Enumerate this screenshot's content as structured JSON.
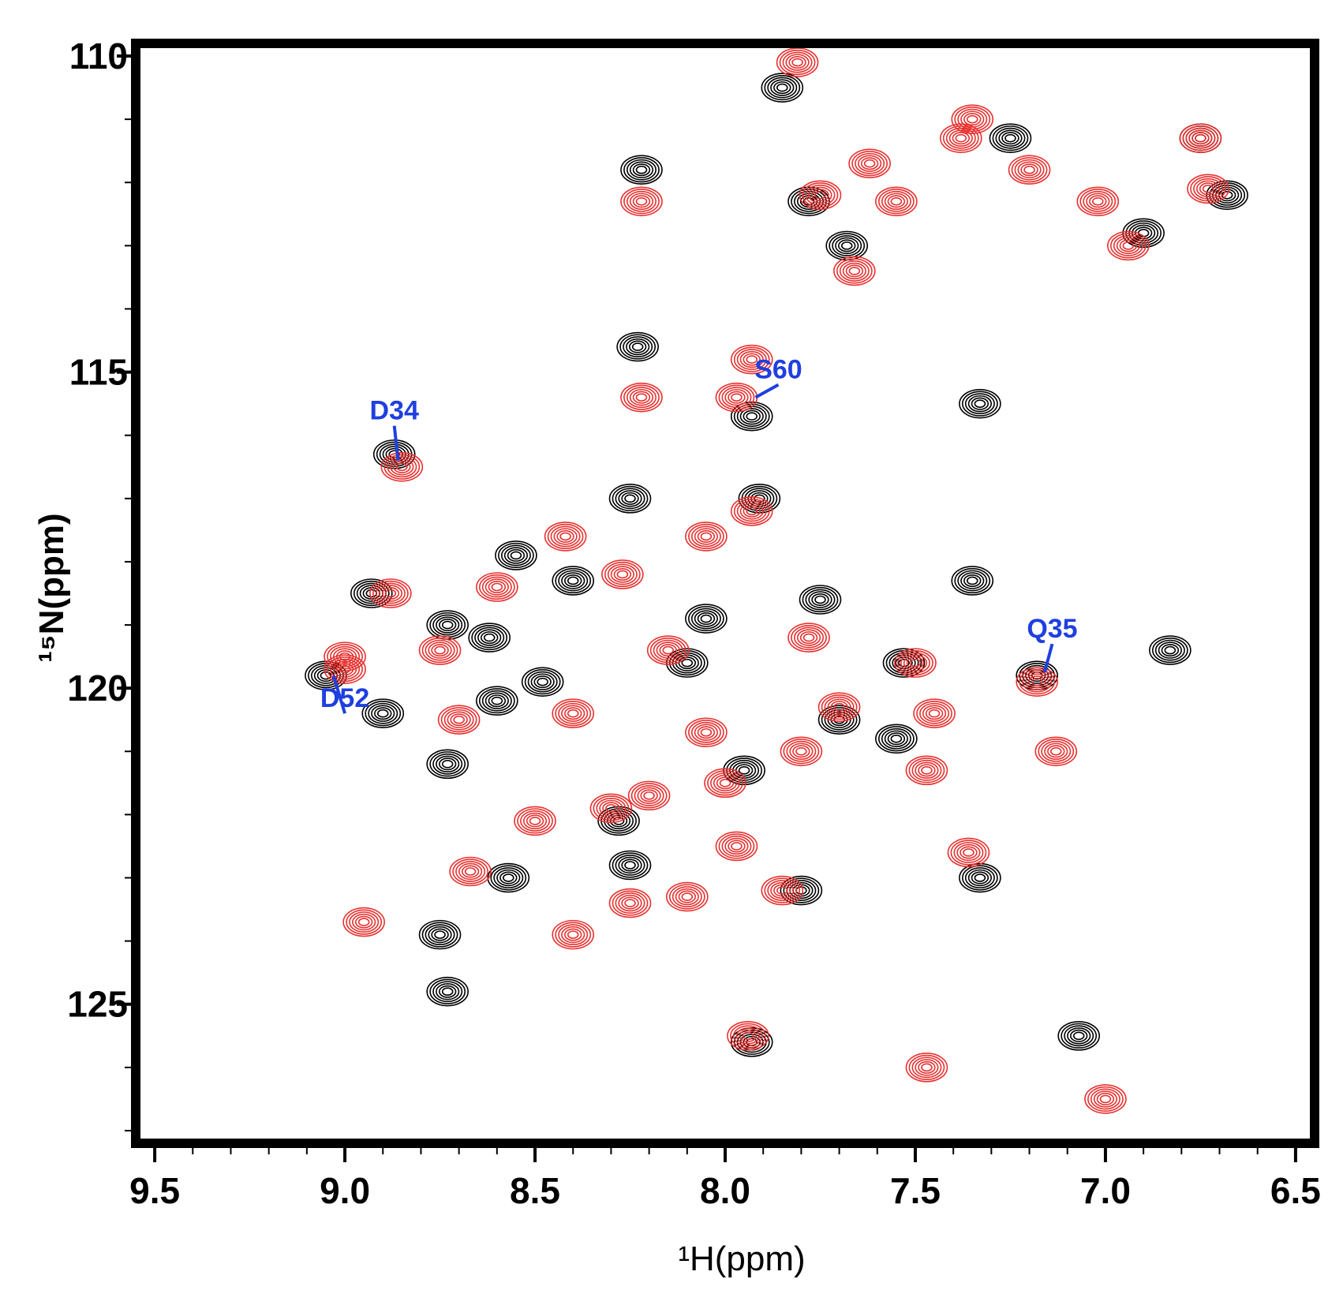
{
  "chart_data": {
    "type": "scatter",
    "title": "",
    "xlabel": "¹H(ppm)",
    "ylabel": "¹⁵N(ppm)",
    "xlim": [
      9.55,
      6.45
    ],
    "ylim": [
      127.2,
      109.8
    ],
    "x_ticks": [
      "9.5",
      "9.0",
      "8.5",
      "8.0",
      "7.5",
      "7.0",
      "6.5"
    ],
    "y_ticks": [
      "110",
      "115",
      "120",
      "125"
    ],
    "grid": false,
    "colors": {
      "black_spectrum": "#000000",
      "red_spectrum": "#e8312f",
      "annotation": "#1f3fe0"
    },
    "series": [
      {
        "color": "#000000",
        "points": [
          [
            7.85,
            110.5
          ],
          [
            8.22,
            111.8
          ],
          [
            7.78,
            112.3
          ],
          [
            7.68,
            113.0
          ],
          [
            7.25,
            111.3
          ],
          [
            6.75,
            111.3
          ],
          [
            6.68,
            112.2
          ],
          [
            6.9,
            112.8
          ],
          [
            8.23,
            114.6
          ],
          [
            7.93,
            115.7
          ],
          [
            7.33,
            115.5
          ],
          [
            8.87,
            116.3
          ],
          [
            7.91,
            117.0
          ],
          [
            8.25,
            117.0
          ],
          [
            8.55,
            117.9
          ],
          [
            8.93,
            118.5
          ],
          [
            8.73,
            119.0
          ],
          [
            8.62,
            119.2
          ],
          [
            8.4,
            118.3
          ],
          [
            7.35,
            118.3
          ],
          [
            7.75,
            118.6
          ],
          [
            6.83,
            119.4
          ],
          [
            9.05,
            119.8
          ],
          [
            8.9,
            120.4
          ],
          [
            7.53,
            119.6
          ],
          [
            7.18,
            119.8
          ],
          [
            8.48,
            119.9
          ],
          [
            8.1,
            119.6
          ],
          [
            8.6,
            120.2
          ],
          [
            8.73,
            121.2
          ],
          [
            8.28,
            122.1
          ],
          [
            7.95,
            121.3
          ],
          [
            8.25,
            122.8
          ],
          [
            8.57,
            123.0
          ],
          [
            7.8,
            123.2
          ],
          [
            7.33,
            123.0
          ],
          [
            8.75,
            123.9
          ],
          [
            8.73,
            124.8
          ],
          [
            7.93,
            125.6
          ],
          [
            7.07,
            125.5
          ],
          [
            7.55,
            120.8
          ],
          [
            7.7,
            120.5
          ],
          [
            8.05,
            118.9
          ]
        ]
      },
      {
        "color": "#e8312f",
        "points": [
          [
            7.81,
            110.1
          ],
          [
            8.22,
            112.3
          ],
          [
            7.75,
            112.2
          ],
          [
            7.55,
            112.3
          ],
          [
            7.62,
            111.7
          ],
          [
            7.38,
            111.3
          ],
          [
            7.2,
            111.8
          ],
          [
            7.35,
            111.0
          ],
          [
            7.02,
            112.3
          ],
          [
            6.75,
            111.3
          ],
          [
            6.73,
            112.1
          ],
          [
            6.94,
            113.0
          ],
          [
            7.66,
            113.4
          ],
          [
            7.93,
            114.8
          ],
          [
            7.97,
            115.4
          ],
          [
            8.22,
            115.4
          ],
          [
            8.85,
            116.5
          ],
          [
            8.42,
            117.6
          ],
          [
            8.27,
            118.2
          ],
          [
            8.05,
            117.6
          ],
          [
            7.93,
            117.2
          ],
          [
            9.0,
            119.5
          ],
          [
            8.75,
            119.4
          ],
          [
            7.8,
            121.0
          ],
          [
            8.2,
            121.7
          ],
          [
            7.18,
            119.9
          ],
          [
            8.6,
            118.4
          ],
          [
            7.78,
            119.2
          ],
          [
            8.15,
            119.4
          ],
          [
            8.4,
            120.4
          ],
          [
            8.7,
            120.5
          ],
          [
            8.05,
            120.7
          ],
          [
            7.7,
            120.3
          ],
          [
            7.45,
            120.4
          ],
          [
            8.0,
            121.5
          ],
          [
            8.3,
            121.9
          ],
          [
            8.5,
            122.1
          ],
          [
            7.97,
            122.5
          ],
          [
            8.67,
            122.9
          ],
          [
            8.25,
            123.4
          ],
          [
            8.4,
            123.9
          ],
          [
            8.95,
            123.7
          ],
          [
            7.36,
            122.6
          ],
          [
            7.13,
            121.0
          ],
          [
            7.47,
            121.3
          ],
          [
            8.88,
            118.5
          ],
          [
            9.0,
            119.7
          ],
          [
            7.5,
            119.6
          ],
          [
            7.94,
            125.5
          ],
          [
            7.0,
            126.5
          ],
          [
            7.47,
            126.0
          ],
          [
            8.1,
            123.3
          ],
          [
            7.85,
            123.2
          ]
        ]
      }
    ],
    "annotations": [
      {
        "label": "D34",
        "x": 8.87,
        "y": 115.75,
        "lead_to": [
          8.86,
          116.4
        ]
      },
      {
        "label": "S60",
        "x": 7.86,
        "y": 115.1,
        "lead_to": [
          7.92,
          115.4
        ]
      },
      {
        "label": "D52",
        "x": 9.0,
        "y": 120.3,
        "lead_to": [
          9.03,
          119.8
        ]
      },
      {
        "label": "Q35",
        "x": 7.14,
        "y": 119.2,
        "lead_to": [
          7.16,
          119.75
        ]
      }
    ]
  }
}
